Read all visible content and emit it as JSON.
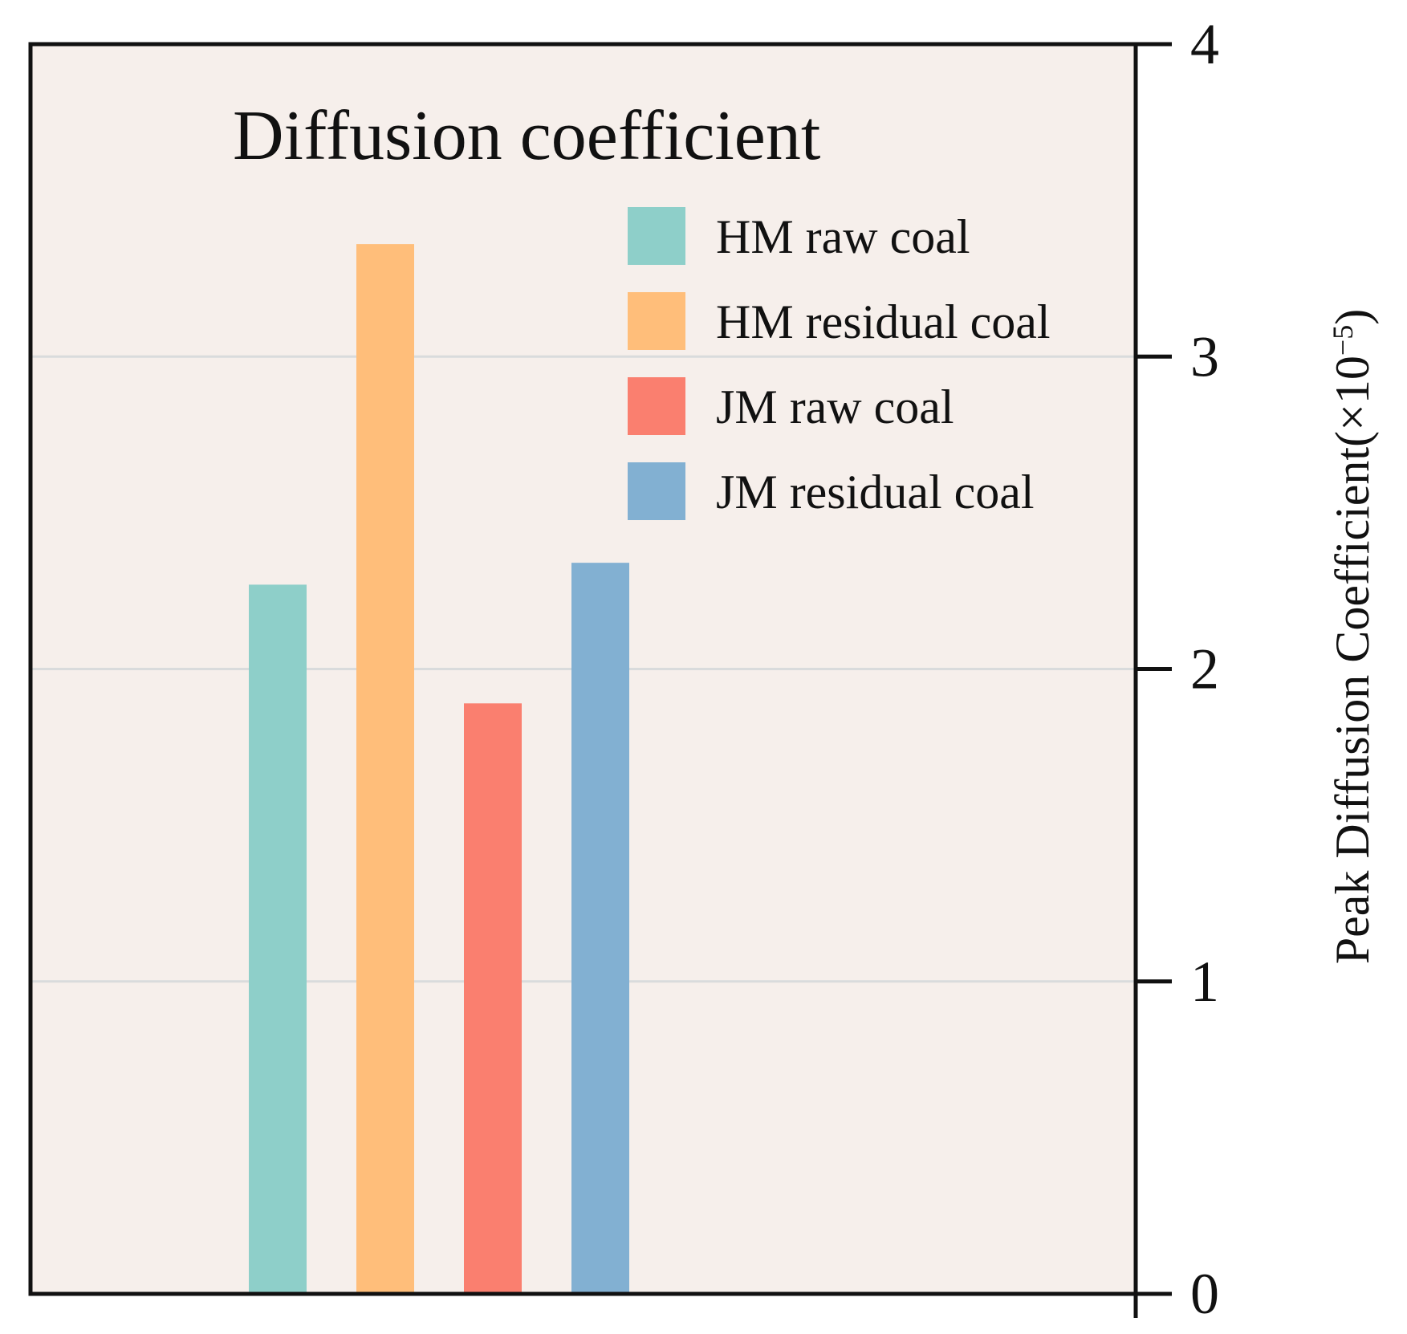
{
  "chart_data": {
    "type": "bar",
    "title": "Diffusion coefficient",
    "ylabel": "Peak Diffusion Coefficient(×10",
    "ylabel_exponent": "−5",
    "ylabel_close": ")",
    "ylim": [
      0,
      4
    ],
    "yticks": [
      "0",
      "1",
      "2",
      "3",
      "4"
    ],
    "y_axis_side": "right",
    "grid": "horizontal",
    "legend_position": "top-right",
    "background_color": "#f6efeb",
    "series": [
      {
        "name": "HM raw coal",
        "value": 2.27,
        "color": "#8ecfc9"
      },
      {
        "name": "HM residual coal",
        "value": 3.36,
        "color": "#ffbe7a"
      },
      {
        "name": "JM raw coal",
        "value": 1.89,
        "color": "#fa7f6f"
      },
      {
        "name": "JM residual coal",
        "value": 2.34,
        "color": "#82b0d2"
      }
    ]
  }
}
